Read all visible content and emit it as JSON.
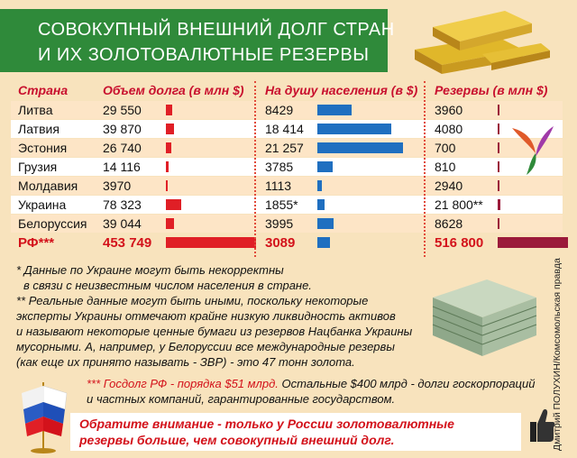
{
  "title": {
    "line1": "СОВОКУПНЫЙ ВНЕШНИЙ ДОЛГ СТРАН",
    "line2": "И ИХ ЗОЛОТОВАЛЮТНЫЕ РЕЗЕРВЫ"
  },
  "table": {
    "headers": {
      "country": "Страна",
      "debt": "Объем долга (в млн $)",
      "per_capita": "На душу населения (в $)",
      "reserves": "Резервы (в млн $)"
    }
  },
  "chart_data": {
    "type": "table",
    "rows": [
      {
        "country": "Литва",
        "debt": 29550,
        "debt_label": "29 550",
        "per_capita": 8429,
        "per_capita_label": "8429",
        "reserves": 3960,
        "reserves_label": "3960"
      },
      {
        "country": "Латвия",
        "debt": 39870,
        "debt_label": "39 870",
        "per_capita": 18414,
        "per_capita_label": "18 414",
        "reserves": 4080,
        "reserves_label": "4080"
      },
      {
        "country": "Эстония",
        "debt": 26740,
        "debt_label": "26 740",
        "per_capita": 21257,
        "per_capita_label": "21 257",
        "reserves": 700,
        "reserves_label": "700"
      },
      {
        "country": "Грузия",
        "debt": 14116,
        "debt_label": "14 116",
        "per_capita": 3785,
        "per_capita_label": "3785",
        "reserves": 810,
        "reserves_label": "810"
      },
      {
        "country": "Молдавия",
        "debt": 3970,
        "debt_label": "3970",
        "per_capita": 1113,
        "per_capita_label": "1113",
        "reserves": 2940,
        "reserves_label": "2940"
      },
      {
        "country": "Украина",
        "debt": 78323,
        "debt_label": "78 323",
        "per_capita": 1855,
        "per_capita_label": "1855*",
        "reserves": 21800,
        "reserves_label": "21 800**"
      },
      {
        "country": "Белоруссия",
        "debt": 39044,
        "debt_label": "39 044",
        "per_capita": 3995,
        "per_capita_label": "3995",
        "reserves": 8628,
        "reserves_label": "8628"
      },
      {
        "country": "РФ***",
        "debt": 453749,
        "debt_label": "453 749",
        "per_capita": 3089,
        "per_capita_label": "3089",
        "reserves": 516800,
        "reserves_label": "516 800"
      }
    ]
  },
  "notes": {
    "n1a": "* Данные по Украине могут быть некорректны",
    "n1b": "в связи с неизвестным числом населения в стране.",
    "n2a": "** Реальные данные могут быть иными, поскольку некоторые",
    "n2b": "эксперты Украины отмечают крайне низкую ликвидность активов",
    "n2c": "и называют некоторые ценные бумаги из резервов Нацбанка Украины",
    "n2d": "мусорными. А, например, у Белоруссии все международные резервы",
    "n2e": "(как еще их принято называть - ЗВР) - это 47 тонн золота.",
    "n3a_red": "*** Госдолг РФ - порядка $51 млрд.",
    "n3a_rest": "Остальные $400 млрд - долги госкорпораций",
    "n3b": "и частных компаний, гарантированные государством."
  },
  "callout": {
    "line1": "Обратите внимание - только у России золотовалютные",
    "line2": "резервы больше, чем совокупный внешний долг."
  },
  "credit": "Дмитрий ПОЛУХИН/Комсомольская правда",
  "colors": {
    "header_green": "#2f8a3a",
    "accent_red": "#d3121b",
    "debt_bar": "#e01f26",
    "per_capita_bar": "#1f6fc0",
    "reserves_bar": "#9b1a3a",
    "background": "#f8e3bd"
  }
}
